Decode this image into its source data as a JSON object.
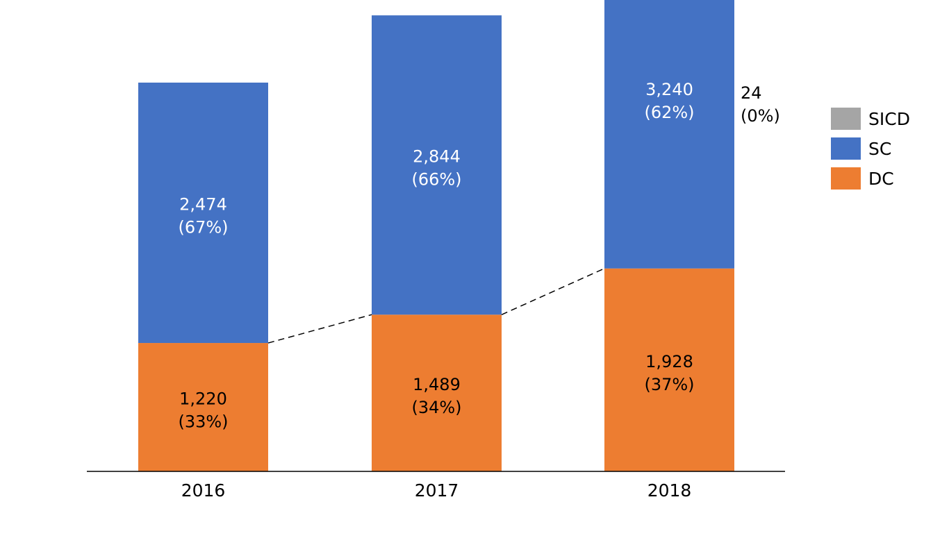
{
  "chart_data": {
    "type": "bar",
    "stacked": true,
    "categories": [
      "2016",
      "2017",
      "2018"
    ],
    "series": [
      {
        "name": "DC",
        "color": "#ED7D31",
        "label_color": "#000000",
        "values": [
          1220,
          1489,
          1928
        ],
        "value_labels": [
          "1,220",
          "1,489",
          "1,928"
        ],
        "pct_labels": [
          "(33%)",
          "(34%)",
          "(37%)"
        ]
      },
      {
        "name": "SC",
        "color": "#4472C4",
        "label_color": "#FFFFFF",
        "values": [
          2474,
          2844,
          3240
        ],
        "value_labels": [
          "2,474",
          "2,844",
          "3,240"
        ],
        "pct_labels": [
          "(67%)",
          "(66%)",
          "(62%)"
        ]
      },
      {
        "name": "SICD",
        "color": "#A5A5A5",
        "label_color": "#000000",
        "values": [
          0,
          0,
          24
        ],
        "value_labels": [
          "",
          "",
          "24"
        ],
        "pct_labels": [
          "",
          "",
          "(0%)"
        ]
      }
    ],
    "legend_order": [
      "SICD",
      "SC",
      "DC"
    ],
    "legend_position": "right",
    "series_lines": true,
    "grid": false,
    "ylim": [
      0,
      5200
    ]
  }
}
